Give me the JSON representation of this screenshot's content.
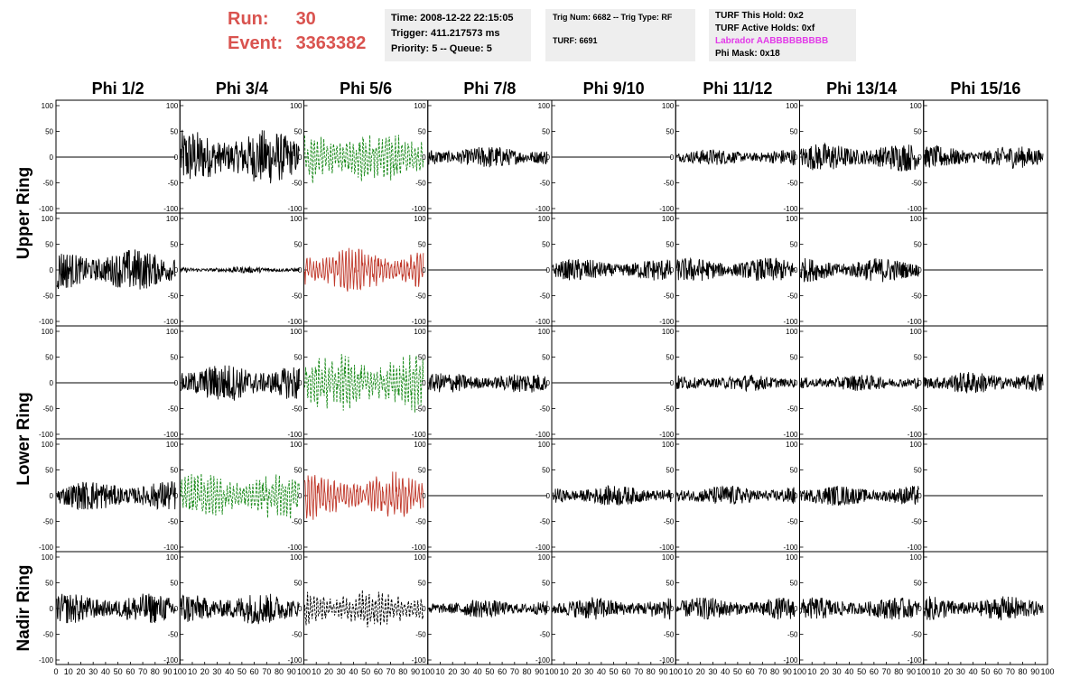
{
  "header": {
    "run_label": "Run:",
    "run_value": "30",
    "event_label": "Event:",
    "event_value": "3363382",
    "time": "Time: 2008-12-22 22:15:05",
    "trigger": "Trigger: 411.217573 ms",
    "priority": "Priority: 5 -- Queue: 5",
    "trig_num": "Trig Num: 6682 -- Trig Type: RF",
    "turf": "TURF: 6691",
    "turf_hold": "TURF This Hold: 0x2",
    "turf_active": "TURF Active Holds: 0xf",
    "labrador": "Labrador AABBBBBBBBB",
    "phi_mask": "Phi Mask: 0x18"
  },
  "colors": {
    "header_red": "#d9534f",
    "labrador_magenta": "#e23ae8",
    "trace_black": "#000000",
    "trace_green": "#1a8a1a",
    "trace_red": "#c0392b"
  },
  "chart_data": {
    "type": "line",
    "columns": [
      "Phi 1/2",
      "Phi 3/4",
      "Phi 5/6",
      "Phi 7/8",
      "Phi 9/10",
      "Phi 11/12",
      "Phi 13/14",
      "Phi 15/16"
    ],
    "row_labels": [
      {
        "text": "Upper Ring",
        "spans": [
          0,
          1
        ]
      },
      {
        "text": "Lower Ring",
        "spans": [
          2,
          3
        ]
      },
      {
        "text": "Nadir Ring",
        "spans": [
          4,
          4
        ]
      }
    ],
    "xlim": [
      0,
      100
    ],
    "ylim": [
      -100,
      100
    ],
    "y_ticks": [
      "100",
      "50",
      "0",
      "-50",
      "-100"
    ],
    "x_tick_labels": [
      "0",
      "10",
      "20",
      "30",
      "40",
      "50",
      "60",
      "70",
      "80",
      "90",
      "100"
    ],
    "panels": [
      {
        "row": 0,
        "col": 0,
        "amplitude": 0,
        "style": "black"
      },
      {
        "row": 0,
        "col": 1,
        "amplitude": 55,
        "style": "black"
      },
      {
        "row": 0,
        "col": 2,
        "amplitude": 60,
        "style": "green-dashed"
      },
      {
        "row": 0,
        "col": 3,
        "amplitude": 22,
        "style": "black"
      },
      {
        "row": 0,
        "col": 4,
        "amplitude": 0,
        "style": "black"
      },
      {
        "row": 0,
        "col": 5,
        "amplitude": 16,
        "style": "black"
      },
      {
        "row": 0,
        "col": 6,
        "amplitude": 28,
        "style": "black"
      },
      {
        "row": 0,
        "col": 7,
        "amplitude": 22,
        "style": "black"
      },
      {
        "row": 1,
        "col": 0,
        "amplitude": 42,
        "style": "black"
      },
      {
        "row": 1,
        "col": 1,
        "amplitude": 6,
        "style": "black"
      },
      {
        "row": 1,
        "col": 2,
        "amplitude": 48,
        "style": "red"
      },
      {
        "row": 1,
        "col": 3,
        "amplitude": 0,
        "style": "black"
      },
      {
        "row": 1,
        "col": 4,
        "amplitude": 22,
        "style": "black"
      },
      {
        "row": 1,
        "col": 5,
        "amplitude": 24,
        "style": "black"
      },
      {
        "row": 1,
        "col": 6,
        "amplitude": 24,
        "style": "black"
      },
      {
        "row": 1,
        "col": 7,
        "amplitude": 0,
        "style": "black"
      },
      {
        "row": 2,
        "col": 0,
        "amplitude": 0,
        "style": "black"
      },
      {
        "row": 2,
        "col": 1,
        "amplitude": 38,
        "style": "black"
      },
      {
        "row": 2,
        "col": 2,
        "amplitude": 62,
        "style": "green-dashed"
      },
      {
        "row": 2,
        "col": 3,
        "amplitude": 20,
        "style": "black"
      },
      {
        "row": 2,
        "col": 4,
        "amplitude": 0,
        "style": "black"
      },
      {
        "row": 2,
        "col": 5,
        "amplitude": 16,
        "style": "black"
      },
      {
        "row": 2,
        "col": 6,
        "amplitude": 16,
        "style": "black"
      },
      {
        "row": 2,
        "col": 7,
        "amplitude": 22,
        "style": "black"
      },
      {
        "row": 3,
        "col": 0,
        "amplitude": 30,
        "style": "black"
      },
      {
        "row": 3,
        "col": 1,
        "amplitude": 50,
        "style": "green-dashed"
      },
      {
        "row": 3,
        "col": 2,
        "amplitude": 48,
        "style": "red"
      },
      {
        "row": 3,
        "col": 3,
        "amplitude": 0,
        "style": "black"
      },
      {
        "row": 3,
        "col": 4,
        "amplitude": 20,
        "style": "black"
      },
      {
        "row": 3,
        "col": 5,
        "amplitude": 20,
        "style": "black"
      },
      {
        "row": 3,
        "col": 6,
        "amplitude": 20,
        "style": "black"
      },
      {
        "row": 3,
        "col": 7,
        "amplitude": 0,
        "style": "black"
      },
      {
        "row": 4,
        "col": 0,
        "amplitude": 30,
        "style": "black"
      },
      {
        "row": 4,
        "col": 1,
        "amplitude": 32,
        "style": "black"
      },
      {
        "row": 4,
        "col": 2,
        "amplitude": 42,
        "style": "black-dashed"
      },
      {
        "row": 4,
        "col": 3,
        "amplitude": 18,
        "style": "black"
      },
      {
        "row": 4,
        "col": 4,
        "amplitude": 22,
        "style": "black"
      },
      {
        "row": 4,
        "col": 5,
        "amplitude": 22,
        "style": "black"
      },
      {
        "row": 4,
        "col": 6,
        "amplitude": 22,
        "style": "black"
      },
      {
        "row": 4,
        "col": 7,
        "amplitude": 24,
        "style": "black"
      }
    ]
  }
}
